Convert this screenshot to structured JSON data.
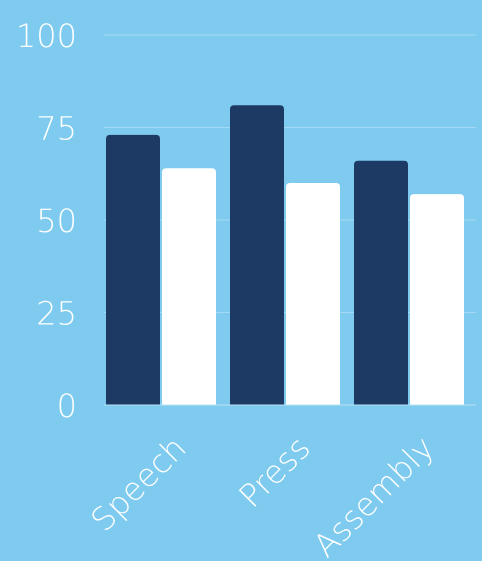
{
  "chart_data": {
    "type": "bar",
    "title": "",
    "xlabel": "",
    "ylabel": "",
    "categories": [
      "Speech",
      "Press",
      "Assembly"
    ],
    "series": [
      {
        "values": [
          73,
          81,
          66
        ],
        "color": "#1c3a63"
      },
      {
        "values": [
          64,
          60,
          57
        ],
        "color": "#ffffff"
      }
    ],
    "ylim": [
      0,
      100
    ],
    "yticks": [
      0,
      25,
      50,
      75,
      100
    ],
    "grid": true,
    "legend": "none",
    "x_label_rotation_deg": -45
  },
  "colors": {
    "background": "#7fcbef",
    "grid": "#a3d9f3",
    "axis": "#b8e2f6",
    "text": "#ffffff"
  }
}
